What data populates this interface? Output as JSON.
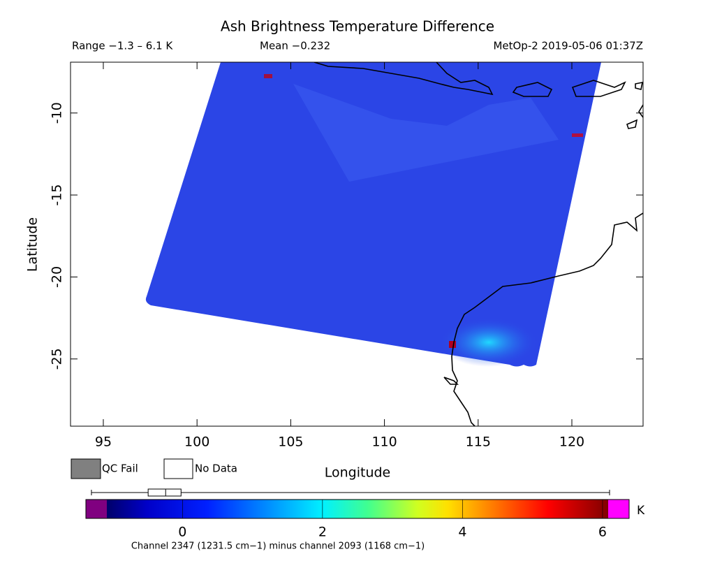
{
  "chart_data": {
    "type": "map",
    "title": "Ash Brightness Temperature Difference",
    "range_text": "Range −1.3 – 6.1 K",
    "mean_text": "Mean −0.232",
    "source_text": "MetOp-2 2019-05-06 01:37Z",
    "x_label": "Longitude",
    "y_label": "Latitude",
    "xlim": [
      93.25,
      123.8
    ],
    "ylim": [
      -29.1,
      -6.9
    ],
    "xticks": [
      95,
      100,
      105,
      110,
      115,
      120
    ],
    "yticks": [
      -10,
      -15,
      -20,
      -25
    ],
    "legend": [
      "QC Fail",
      "No Data"
    ],
    "colorbar": {
      "clim": [
        -1.08,
        6.08
      ],
      "ticks": [
        0,
        2,
        4,
        6
      ],
      "unit": "K",
      "caption": "Channel 2347 (1231.5 cm−1) minus channel 2093 (1168 cm−1)",
      "boxplot": {
        "min": -1.3,
        "q1": -0.49,
        "median": -0.24,
        "q3": -0.02,
        "max": 6.1
      }
    }
  }
}
